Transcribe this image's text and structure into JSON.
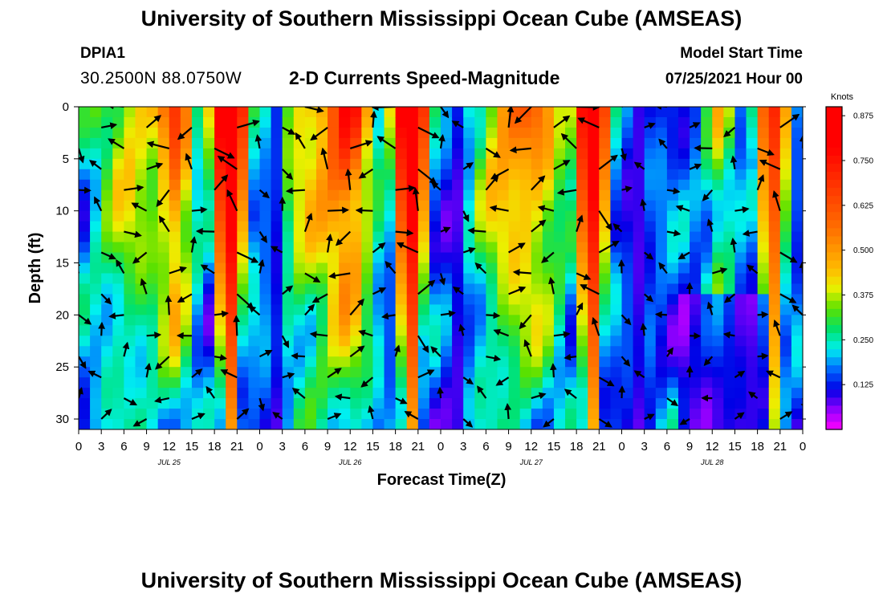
{
  "header": {
    "top_title": "University of Southern Mississippi Ocean Cube (AMSEAS)",
    "station_id": "DPIA1",
    "station_coords": "30.2500N  88.0750W",
    "chart_title": "2-D Currents Speed-Magnitude",
    "model_start_label": "Model Start Time",
    "model_start_value": "07/25/2021 Hour 00"
  },
  "footer": {
    "bottom_title": "University of Southern Mississippi Ocean Cube (AMSEAS)"
  },
  "chart_data": {
    "type": "heatmap",
    "title": "2-D Currents Speed-Magnitude",
    "xlabel": "Forecast Time(Z)",
    "ylabel": "Depth (ft)",
    "xlim": [
      0,
      96
    ],
    "ylim": [
      0,
      31
    ],
    "x_tick_values": [
      0,
      3,
      6,
      9,
      12,
      15,
      18,
      21,
      24,
      27,
      30,
      33,
      36,
      39,
      42,
      45,
      48,
      51,
      54,
      57,
      60,
      63,
      66,
      69,
      72,
      75,
      78,
      81,
      84,
      87,
      90,
      93,
      96
    ],
    "x_tick_labels": [
      "0",
      "3",
      "6",
      "9",
      "12",
      "15",
      "18",
      "21",
      "0",
      "3",
      "6",
      "9",
      "12",
      "15",
      "18",
      "21",
      "0",
      "3",
      "6",
      "9",
      "12",
      "15",
      "18",
      "21",
      "0",
      "3",
      "6",
      "9",
      "12",
      "15",
      "18",
      "21",
      "0"
    ],
    "date_labels": [
      {
        "x": 12,
        "text": "JUL 25"
      },
      {
        "x": 36,
        "text": "JUL 26"
      },
      {
        "x": 60,
        "text": "JUL 27"
      },
      {
        "x": 84,
        "text": "JUL 28"
      }
    ],
    "y_ticks": [
      0,
      5,
      10,
      15,
      20,
      25,
      30
    ],
    "colorbar": {
      "label": "Knots",
      "min": 0,
      "max": 0.9,
      "ticks": [
        "0.875",
        "0.750",
        "0.625",
        "0.500",
        "0.375",
        "0.250",
        "0.125"
      ],
      "tick_values": [
        0.875,
        0.75,
        0.625,
        0.5,
        0.375,
        0.25,
        0.125
      ]
    },
    "peaks": [
      {
        "t": 20,
        "v": 0.88,
        "w": 3.0
      },
      {
        "t": 44,
        "v": 0.85,
        "w": 3.0
      },
      {
        "t": 68,
        "v": 0.8,
        "w": 3.0
      },
      {
        "t": 92,
        "v": 0.6,
        "w": 2.8
      }
    ],
    "minima": [
      26,
      50,
      74
    ],
    "secondary": [
      {
        "t": 7,
        "v": 0.28,
        "w": 5
      },
      {
        "t": 13,
        "v": 0.42,
        "w": 2.2
      },
      {
        "t": 31,
        "v": 0.3,
        "w": 6
      },
      {
        "t": 36,
        "v": 0.4,
        "w": 3
      },
      {
        "t": 56,
        "v": 0.28,
        "w": 4
      },
      {
        "t": 61,
        "v": 0.32,
        "w": 4
      },
      {
        "t": 85,
        "v": 0.22,
        "w": 2
      }
    ],
    "vector_times": [
      0,
      3,
      6,
      9,
      12,
      15,
      18,
      21,
      24,
      27,
      30,
      33,
      36,
      39,
      42,
      45,
      48,
      51,
      54,
      57,
      60,
      63,
      66,
      69,
      72,
      75,
      78,
      81,
      84,
      87,
      90,
      93,
      96
    ],
    "vector_depths": [
      0,
      2,
      4,
      6,
      8,
      10,
      12,
      14,
      16,
      18,
      20,
      22,
      24,
      26,
      28,
      30
    ]
  }
}
